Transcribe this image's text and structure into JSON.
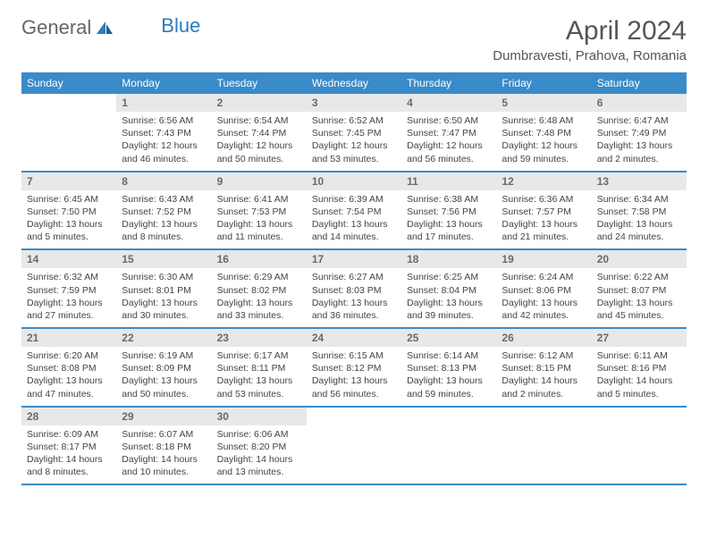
{
  "brand": {
    "part1": "General",
    "part2": "Blue"
  },
  "title": "April 2024",
  "location": "Dumbravesti, Prahova, Romania",
  "colors": {
    "header_bg": "#3a8bc9",
    "header_fg": "#ffffff",
    "daynum_bg": "#e8e8e8",
    "daynum_fg": "#6a6a6a",
    "row_border": "#3a8bc9",
    "body_text": "#444444",
    "title_text": "#555555",
    "logo_gray": "#666666",
    "logo_blue": "#2e7cc0",
    "page_bg": "#ffffff"
  },
  "typography": {
    "title_fontsize": 30,
    "location_fontsize": 15,
    "dayhead_fontsize": 12,
    "daynum_fontsize": 12,
    "cell_fontsize": 10.5,
    "logo_fontsize": 22
  },
  "day_headers": [
    "Sunday",
    "Monday",
    "Tuesday",
    "Wednesday",
    "Thursday",
    "Friday",
    "Saturday"
  ],
  "weeks": [
    [
      {
        "n": "",
        "sr": "",
        "ss": "",
        "dl": ""
      },
      {
        "n": "1",
        "sr": "Sunrise: 6:56 AM",
        "ss": "Sunset: 7:43 PM",
        "dl": "Daylight: 12 hours and 46 minutes."
      },
      {
        "n": "2",
        "sr": "Sunrise: 6:54 AM",
        "ss": "Sunset: 7:44 PM",
        "dl": "Daylight: 12 hours and 50 minutes."
      },
      {
        "n": "3",
        "sr": "Sunrise: 6:52 AM",
        "ss": "Sunset: 7:45 PM",
        "dl": "Daylight: 12 hours and 53 minutes."
      },
      {
        "n": "4",
        "sr": "Sunrise: 6:50 AM",
        "ss": "Sunset: 7:47 PM",
        "dl": "Daylight: 12 hours and 56 minutes."
      },
      {
        "n": "5",
        "sr": "Sunrise: 6:48 AM",
        "ss": "Sunset: 7:48 PM",
        "dl": "Daylight: 12 hours and 59 minutes."
      },
      {
        "n": "6",
        "sr": "Sunrise: 6:47 AM",
        "ss": "Sunset: 7:49 PM",
        "dl": "Daylight: 13 hours and 2 minutes."
      }
    ],
    [
      {
        "n": "7",
        "sr": "Sunrise: 6:45 AM",
        "ss": "Sunset: 7:50 PM",
        "dl": "Daylight: 13 hours and 5 minutes."
      },
      {
        "n": "8",
        "sr": "Sunrise: 6:43 AM",
        "ss": "Sunset: 7:52 PM",
        "dl": "Daylight: 13 hours and 8 minutes."
      },
      {
        "n": "9",
        "sr": "Sunrise: 6:41 AM",
        "ss": "Sunset: 7:53 PM",
        "dl": "Daylight: 13 hours and 11 minutes."
      },
      {
        "n": "10",
        "sr": "Sunrise: 6:39 AM",
        "ss": "Sunset: 7:54 PM",
        "dl": "Daylight: 13 hours and 14 minutes."
      },
      {
        "n": "11",
        "sr": "Sunrise: 6:38 AM",
        "ss": "Sunset: 7:56 PM",
        "dl": "Daylight: 13 hours and 17 minutes."
      },
      {
        "n": "12",
        "sr": "Sunrise: 6:36 AM",
        "ss": "Sunset: 7:57 PM",
        "dl": "Daylight: 13 hours and 21 minutes."
      },
      {
        "n": "13",
        "sr": "Sunrise: 6:34 AM",
        "ss": "Sunset: 7:58 PM",
        "dl": "Daylight: 13 hours and 24 minutes."
      }
    ],
    [
      {
        "n": "14",
        "sr": "Sunrise: 6:32 AM",
        "ss": "Sunset: 7:59 PM",
        "dl": "Daylight: 13 hours and 27 minutes."
      },
      {
        "n": "15",
        "sr": "Sunrise: 6:30 AM",
        "ss": "Sunset: 8:01 PM",
        "dl": "Daylight: 13 hours and 30 minutes."
      },
      {
        "n": "16",
        "sr": "Sunrise: 6:29 AM",
        "ss": "Sunset: 8:02 PM",
        "dl": "Daylight: 13 hours and 33 minutes."
      },
      {
        "n": "17",
        "sr": "Sunrise: 6:27 AM",
        "ss": "Sunset: 8:03 PM",
        "dl": "Daylight: 13 hours and 36 minutes."
      },
      {
        "n": "18",
        "sr": "Sunrise: 6:25 AM",
        "ss": "Sunset: 8:04 PM",
        "dl": "Daylight: 13 hours and 39 minutes."
      },
      {
        "n": "19",
        "sr": "Sunrise: 6:24 AM",
        "ss": "Sunset: 8:06 PM",
        "dl": "Daylight: 13 hours and 42 minutes."
      },
      {
        "n": "20",
        "sr": "Sunrise: 6:22 AM",
        "ss": "Sunset: 8:07 PM",
        "dl": "Daylight: 13 hours and 45 minutes."
      }
    ],
    [
      {
        "n": "21",
        "sr": "Sunrise: 6:20 AM",
        "ss": "Sunset: 8:08 PM",
        "dl": "Daylight: 13 hours and 47 minutes."
      },
      {
        "n": "22",
        "sr": "Sunrise: 6:19 AM",
        "ss": "Sunset: 8:09 PM",
        "dl": "Daylight: 13 hours and 50 minutes."
      },
      {
        "n": "23",
        "sr": "Sunrise: 6:17 AM",
        "ss": "Sunset: 8:11 PM",
        "dl": "Daylight: 13 hours and 53 minutes."
      },
      {
        "n": "24",
        "sr": "Sunrise: 6:15 AM",
        "ss": "Sunset: 8:12 PM",
        "dl": "Daylight: 13 hours and 56 minutes."
      },
      {
        "n": "25",
        "sr": "Sunrise: 6:14 AM",
        "ss": "Sunset: 8:13 PM",
        "dl": "Daylight: 13 hours and 59 minutes."
      },
      {
        "n": "26",
        "sr": "Sunrise: 6:12 AM",
        "ss": "Sunset: 8:15 PM",
        "dl": "Daylight: 14 hours and 2 minutes."
      },
      {
        "n": "27",
        "sr": "Sunrise: 6:11 AM",
        "ss": "Sunset: 8:16 PM",
        "dl": "Daylight: 14 hours and 5 minutes."
      }
    ],
    [
      {
        "n": "28",
        "sr": "Sunrise: 6:09 AM",
        "ss": "Sunset: 8:17 PM",
        "dl": "Daylight: 14 hours and 8 minutes."
      },
      {
        "n": "29",
        "sr": "Sunrise: 6:07 AM",
        "ss": "Sunset: 8:18 PM",
        "dl": "Daylight: 14 hours and 10 minutes."
      },
      {
        "n": "30",
        "sr": "Sunrise: 6:06 AM",
        "ss": "Sunset: 8:20 PM",
        "dl": "Daylight: 14 hours and 13 minutes."
      },
      {
        "n": "",
        "sr": "",
        "ss": "",
        "dl": ""
      },
      {
        "n": "",
        "sr": "",
        "ss": "",
        "dl": ""
      },
      {
        "n": "",
        "sr": "",
        "ss": "",
        "dl": ""
      },
      {
        "n": "",
        "sr": "",
        "ss": "",
        "dl": ""
      }
    ]
  ]
}
